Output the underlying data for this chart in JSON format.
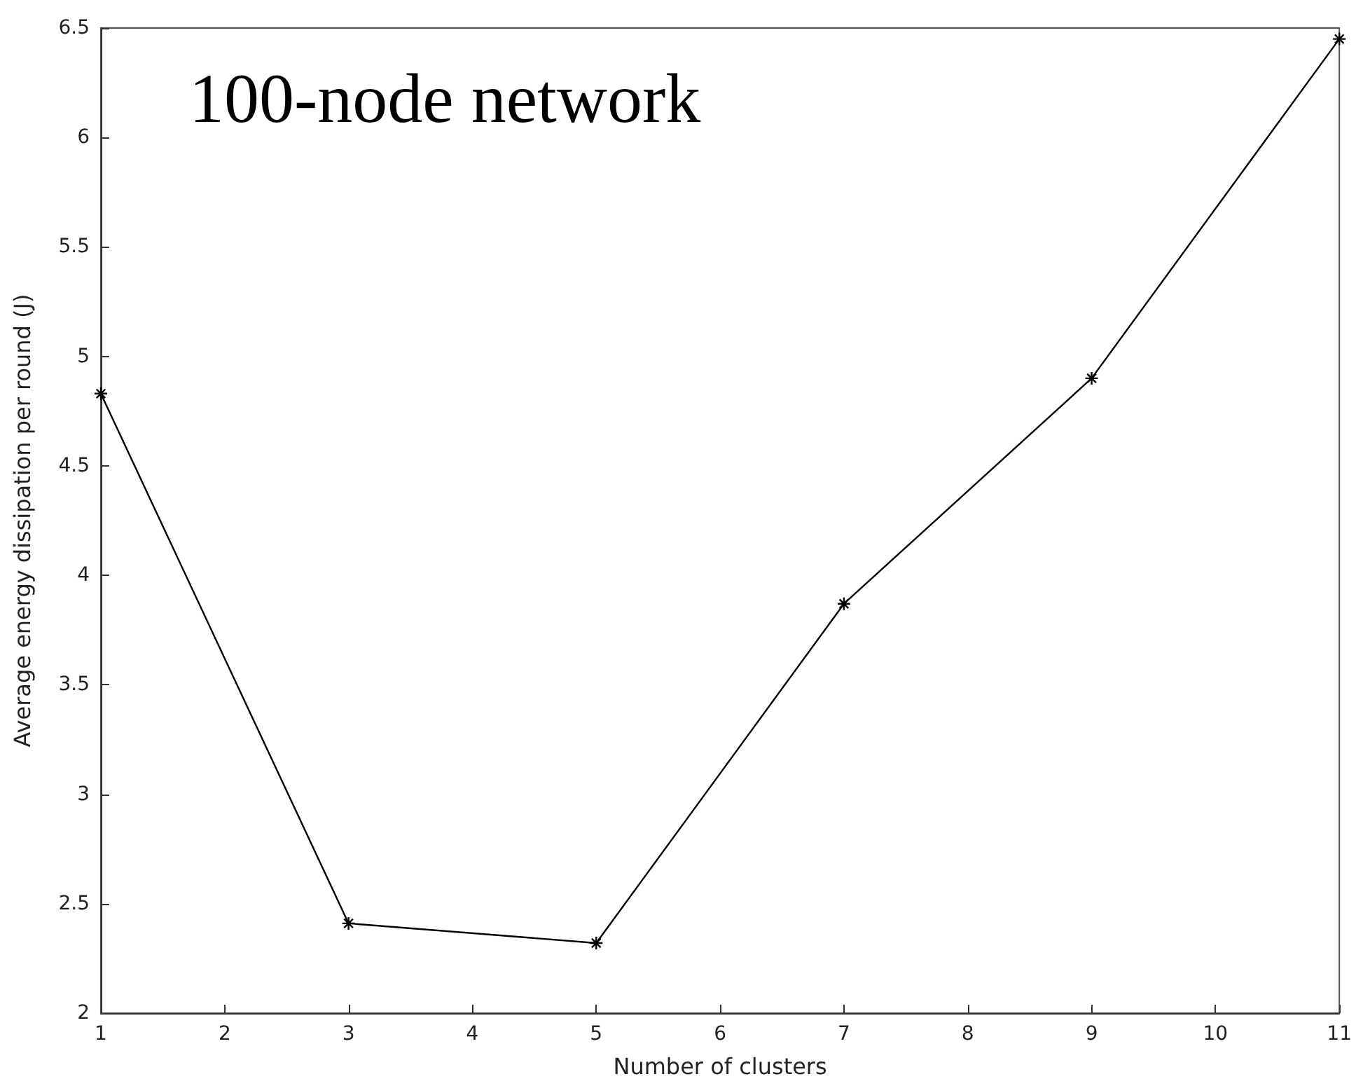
{
  "chart_data": {
    "type": "line",
    "title": "100-node network",
    "xlabel": "Number of clusters",
    "ylabel": "Average energy dissipation per round (J)",
    "x": [
      1,
      3,
      5,
      7,
      9,
      11
    ],
    "series": [
      {
        "color": "#000000",
        "values": [
          4.83,
          2.41,
          2.32,
          3.87,
          4.9,
          6.45
        ]
      }
    ],
    "xlim": [
      1,
      11
    ],
    "xticks": [
      1,
      2,
      3,
      4,
      5,
      6,
      7,
      8,
      9,
      10,
      11
    ],
    "ylim": [
      2,
      6.5
    ],
    "yticks": [
      2,
      2.5,
      3,
      3.5,
      4,
      4.5,
      5,
      5.5,
      6,
      6.5
    ],
    "grid": false,
    "marker": "cross",
    "line_style": "solid"
  }
}
